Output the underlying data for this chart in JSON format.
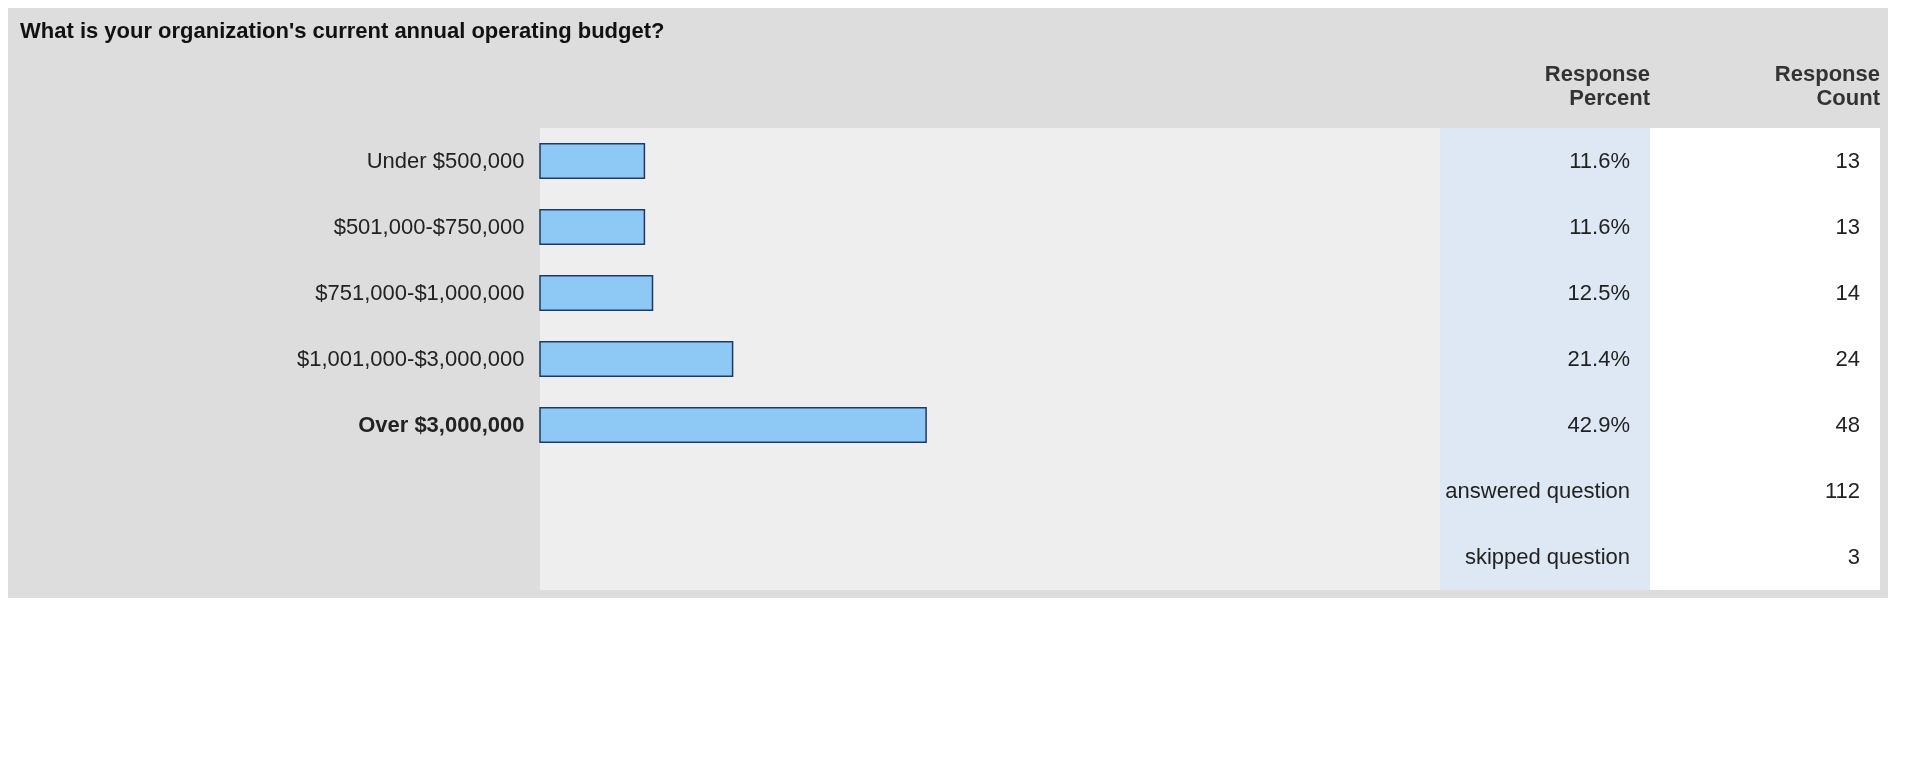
{
  "chart_data": {
    "type": "bar",
    "orientation": "horizontal",
    "title": "What is your organization's current annual operating budget?",
    "categories": [
      "Under $500,000",
      "$501,000-$750,000",
      "$751,000-$1,000,000",
      "$1,001,000-$3,000,000",
      "Over $3,000,000"
    ],
    "values": [
      11.6,
      11.6,
      12.5,
      21.4,
      42.9
    ],
    "value_labels": [
      "11.6%",
      "11.6%",
      "12.5%",
      "21.4%",
      "42.9%"
    ],
    "color": "#8ec8f4",
    "xlim": [
      0,
      100
    ],
    "tick_labels": false,
    "grid": false,
    "annotations": [
      "Response Percent",
      "Response Count",
      "13",
      "13",
      "14",
      "24",
      "48",
      "answered question",
      "112",
      "skipped question",
      "3"
    ]
  }
}
